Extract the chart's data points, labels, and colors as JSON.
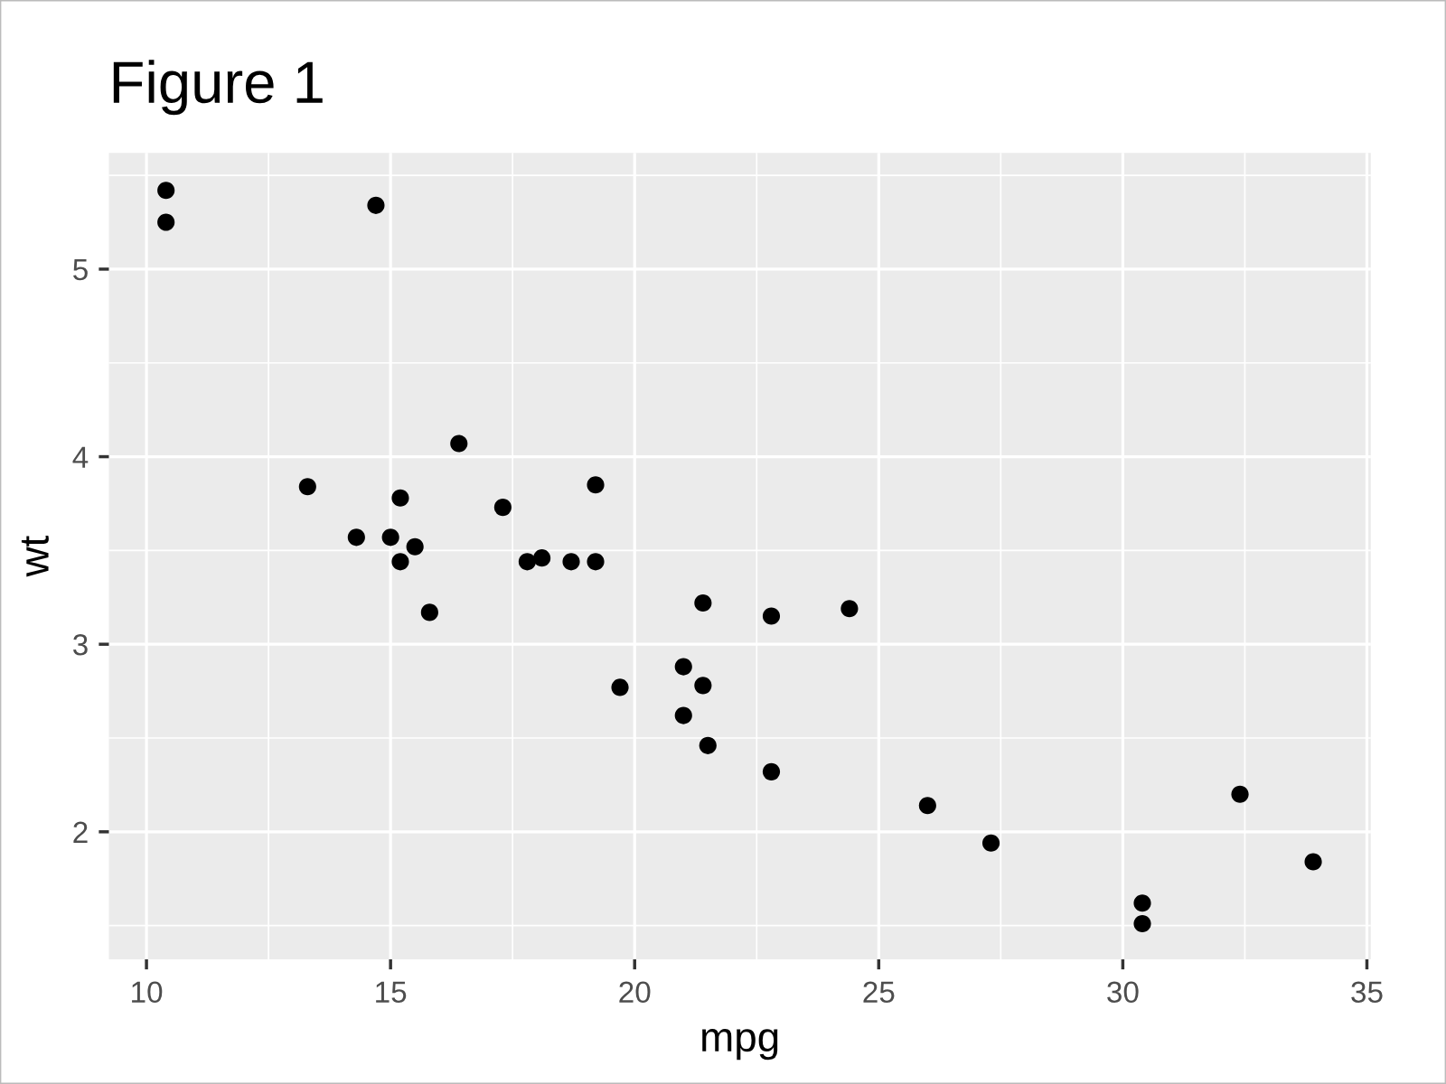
{
  "chart_data": {
    "type": "scatter",
    "title": "Figure 1",
    "xlabel": "mpg",
    "ylabel": "wt",
    "x": [
      21.0,
      21.0,
      22.8,
      21.4,
      18.7,
      18.1,
      14.3,
      24.4,
      22.8,
      19.2,
      17.8,
      16.4,
      17.3,
      15.2,
      10.4,
      10.4,
      14.7,
      32.4,
      30.4,
      33.9,
      21.5,
      15.5,
      15.2,
      13.3,
      19.2,
      27.3,
      26.0,
      30.4,
      15.8,
      19.7,
      15.0,
      21.4
    ],
    "values": [
      2.62,
      2.88,
      2.32,
      3.22,
      3.44,
      3.46,
      3.57,
      3.19,
      3.15,
      3.44,
      3.44,
      4.07,
      3.73,
      3.78,
      5.25,
      5.42,
      5.34,
      2.2,
      1.62,
      1.84,
      2.46,
      3.52,
      3.44,
      3.84,
      3.85,
      1.94,
      2.14,
      1.51,
      3.17,
      2.77,
      3.57,
      2.78
    ],
    "color": "#000000",
    "marker": "circle",
    "xlim": [
      9.23,
      35.08
    ],
    "ylim": [
      1.32,
      5.62
    ],
    "xticks": [
      10,
      15,
      20,
      25,
      30,
      35
    ],
    "yticks": [
      2,
      3,
      4,
      5
    ],
    "grid": true
  }
}
